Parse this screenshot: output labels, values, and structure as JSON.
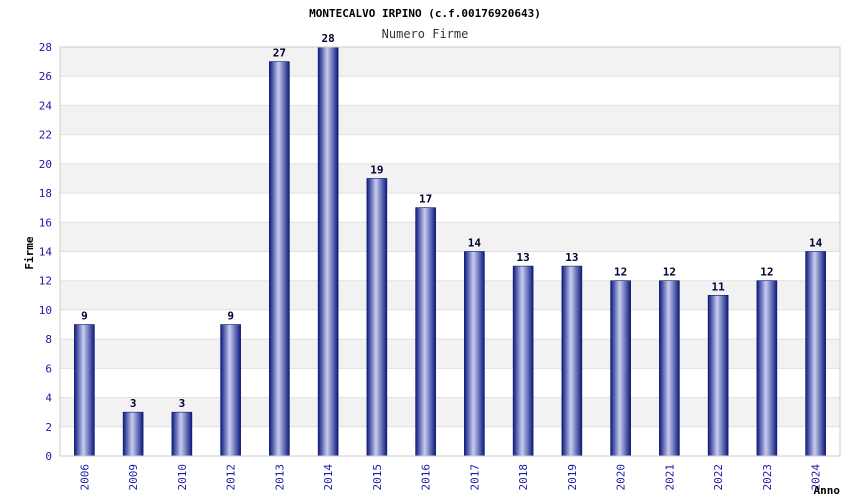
{
  "chart_data": {
    "type": "bar",
    "title": "MONTECALVO IRPINO (c.f.00176920643)",
    "subtitle": "Numero Firme",
    "xlabel": "Anno",
    "ylabel": "Firme",
    "categories": [
      "2006",
      "2009",
      "2010",
      "2012",
      "2013",
      "2014",
      "2015",
      "2016",
      "2017",
      "2018",
      "2019",
      "2020",
      "2021",
      "2022",
      "2023",
      "2024"
    ],
    "values": [
      9,
      3,
      3,
      9,
      27,
      28,
      19,
      17,
      14,
      13,
      13,
      12,
      12,
      11,
      12,
      14
    ],
    "ylim": [
      0,
      28
    ],
    "yticks": [
      0,
      2,
      4,
      6,
      8,
      10,
      12,
      14,
      16,
      18,
      20,
      22,
      24,
      26,
      28
    ],
    "grid": true,
    "data_labels": true,
    "colors": {
      "bar_dark": "#0d1a80",
      "bar_light": "#c8cdf0",
      "band": "#f2f2f2",
      "tick_text": "#1a1aa6"
    }
  }
}
